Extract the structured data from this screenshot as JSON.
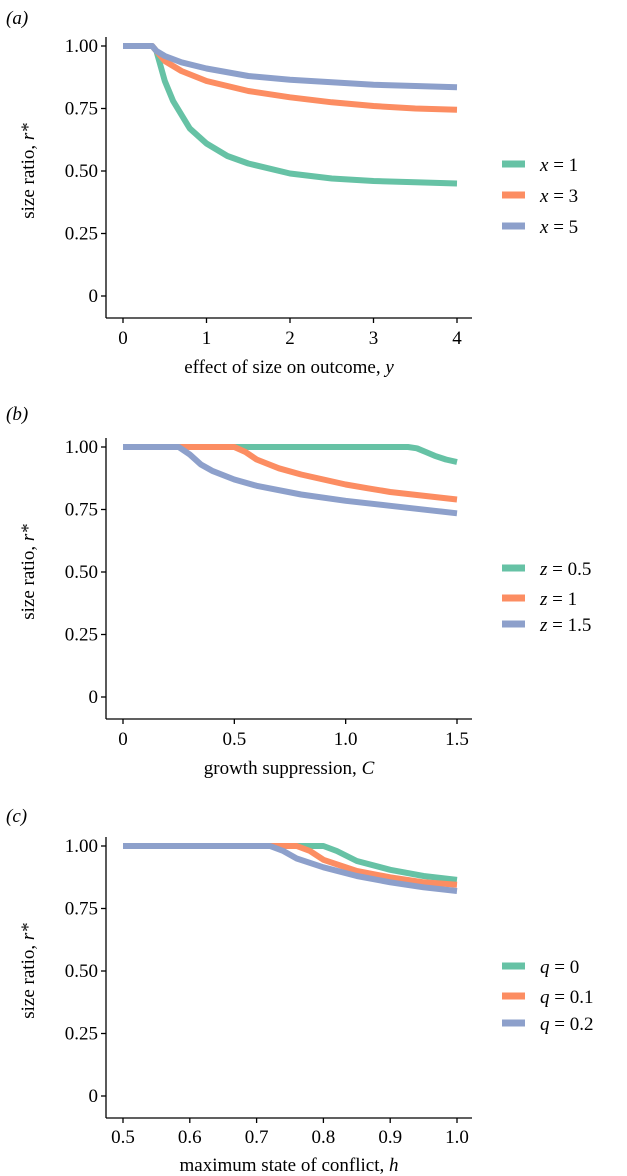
{
  "colors": {
    "green": "#66c2a5",
    "orange": "#fc8d62",
    "blue": "#8da0cb",
    "axis": "#000000"
  },
  "chart_data": [
    {
      "type": "line",
      "panel_label": "(a)",
      "xlabel": "effect of size on outcome, ",
      "xlabel_var": "y",
      "ylabel": "size ratio, ",
      "ylabel_var": "r*",
      "xlim": [
        0,
        4
      ],
      "ylim": [
        0,
        1
      ],
      "x_ticks": [
        0,
        1,
        2,
        3,
        4
      ],
      "x_tick_labels": [
        "0",
        "1",
        "2",
        "3",
        "4"
      ],
      "y_ticks": [
        0,
        0.25,
        0.5,
        0.75,
        1.0
      ],
      "y_tick_labels": [
        "0",
        "0.25",
        "0.50",
        "0.75",
        "1.00"
      ],
      "legend_position": "right",
      "series": [
        {
          "name": "x = 1",
          "var": "x",
          "val": "1",
          "color": "#66c2a5",
          "x": [
            0,
            0.35,
            0.4,
            0.5,
            0.6,
            0.8,
            1.0,
            1.25,
            1.5,
            2.0,
            2.5,
            3.0,
            3.5,
            4.0
          ],
          "y": [
            1.0,
            1.0,
            0.98,
            0.86,
            0.78,
            0.67,
            0.61,
            0.56,
            0.53,
            0.49,
            0.47,
            0.46,
            0.455,
            0.45
          ]
        },
        {
          "name": "x = 3",
          "var": "x",
          "val": "3",
          "color": "#fc8d62",
          "x": [
            0,
            0.35,
            0.4,
            0.5,
            0.7,
            1.0,
            1.5,
            2.0,
            2.5,
            3.0,
            3.5,
            4.0
          ],
          "y": [
            1.0,
            1.0,
            0.98,
            0.94,
            0.9,
            0.86,
            0.82,
            0.795,
            0.775,
            0.76,
            0.75,
            0.745
          ]
        },
        {
          "name": "x = 5",
          "var": "x",
          "val": "5",
          "color": "#8da0cb",
          "x": [
            0,
            0.35,
            0.4,
            0.5,
            0.7,
            1.0,
            1.5,
            2.0,
            2.5,
            3.0,
            3.5,
            4.0
          ],
          "y": [
            1.0,
            1.0,
            0.98,
            0.96,
            0.935,
            0.91,
            0.88,
            0.865,
            0.855,
            0.845,
            0.84,
            0.835
          ]
        }
      ]
    },
    {
      "type": "line",
      "panel_label": "(b)",
      "xlabel": "growth suppression, ",
      "xlabel_var": "C",
      "ylabel": "size ratio, ",
      "ylabel_var": "r*",
      "xlim": [
        0,
        1.5
      ],
      "ylim": [
        0,
        1
      ],
      "x_ticks": [
        0,
        0.5,
        1.0,
        1.5
      ],
      "x_tick_labels": [
        "0",
        "0.5",
        "1.0",
        "1.5"
      ],
      "y_ticks": [
        0,
        0.25,
        0.5,
        0.75,
        1.0
      ],
      "y_tick_labels": [
        "0",
        "0.25",
        "0.50",
        "0.75",
        "1.00"
      ],
      "legend_position": "right",
      "series": [
        {
          "name": "z = 0.5",
          "var": "z",
          "val": "0.5",
          "color": "#66c2a5",
          "x": [
            0,
            1.28,
            1.32,
            1.36,
            1.4,
            1.45,
            1.5
          ],
          "y": [
            1.0,
            1.0,
            0.995,
            0.98,
            0.965,
            0.95,
            0.94
          ]
        },
        {
          "name": "z = 1",
          "var": "z",
          "val": "1",
          "color": "#fc8d62",
          "x": [
            0,
            0.5,
            0.55,
            0.6,
            0.7,
            0.8,
            0.9,
            1.0,
            1.1,
            1.2,
            1.3,
            1.4,
            1.5
          ],
          "y": [
            1.0,
            1.0,
            0.98,
            0.95,
            0.915,
            0.89,
            0.87,
            0.85,
            0.835,
            0.82,
            0.81,
            0.8,
            0.79
          ]
        },
        {
          "name": "z = 1.5",
          "var": "z",
          "val": "1.5",
          "color": "#8da0cb",
          "x": [
            0,
            0.25,
            0.3,
            0.35,
            0.4,
            0.5,
            0.6,
            0.8,
            1.0,
            1.2,
            1.4,
            1.5
          ],
          "y": [
            1.0,
            1.0,
            0.97,
            0.93,
            0.905,
            0.87,
            0.845,
            0.81,
            0.785,
            0.765,
            0.745,
            0.735
          ]
        }
      ]
    },
    {
      "type": "line",
      "panel_label": "(c)",
      "xlabel": "maximum state of conflict, ",
      "xlabel_var": "h",
      "ylabel": "size ratio, ",
      "ylabel_var": "r*",
      "xlim": [
        0.5,
        1.0
      ],
      "ylim": [
        0,
        1
      ],
      "x_ticks": [
        0.5,
        0.6,
        0.7,
        0.8,
        0.9,
        1.0
      ],
      "x_tick_labels": [
        "0.5",
        "0.6",
        "0.7",
        "0.8",
        "0.9",
        "1.0"
      ],
      "y_ticks": [
        0,
        0.25,
        0.5,
        0.75,
        1.0
      ],
      "y_tick_labels": [
        "0",
        "0.25",
        "0.50",
        "0.75",
        "1.00"
      ],
      "legend_position": "right",
      "series": [
        {
          "name": "q = 0",
          "var": "q",
          "val": "0",
          "color": "#66c2a5",
          "x": [
            0.5,
            0.8,
            0.82,
            0.85,
            0.9,
            0.95,
            1.0
          ],
          "y": [
            1.0,
            1.0,
            0.98,
            0.94,
            0.905,
            0.88,
            0.865
          ]
        },
        {
          "name": "q = 0.1",
          "var": "q",
          "val": "0.1",
          "color": "#fc8d62",
          "x": [
            0.5,
            0.76,
            0.78,
            0.8,
            0.85,
            0.9,
            0.95,
            1.0
          ],
          "y": [
            1.0,
            1.0,
            0.98,
            0.945,
            0.9,
            0.875,
            0.855,
            0.845
          ]
        },
        {
          "name": "q = 0.2",
          "var": "q",
          "val": "0.2",
          "color": "#8da0cb",
          "x": [
            0.5,
            0.72,
            0.74,
            0.76,
            0.8,
            0.85,
            0.9,
            0.95,
            1.0
          ],
          "y": [
            1.0,
            1.0,
            0.98,
            0.95,
            0.915,
            0.88,
            0.855,
            0.835,
            0.82
          ]
        }
      ]
    }
  ]
}
